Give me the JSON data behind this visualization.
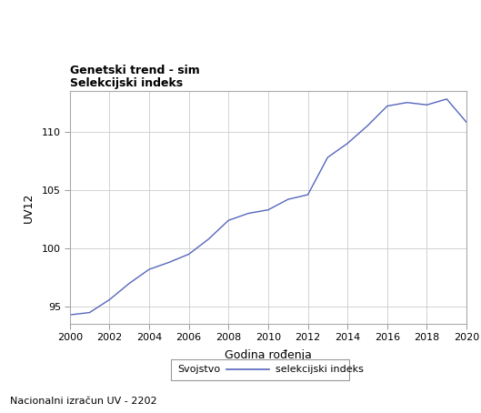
{
  "title_line1": "Genetski trend - sim",
  "title_line2": "Selekcijski indeks",
  "xlabel": "Godina rođenja",
  "ylabel": "UV12",
  "footer": "Nacionalni izračun UV - 2202",
  "legend_label1": "Svojstvo",
  "legend_label2": "selekcijski indeks",
  "line_color": "#5566bb",
  "background_color": "#ffffff",
  "plot_bg_color": "#ffffff",
  "grid_color": "#cccccc",
  "border_color": "#aaaaaa",
  "xlim": [
    2000,
    2020
  ],
  "ylim": [
    93.5,
    113.5
  ],
  "xticks": [
    2000,
    2002,
    2004,
    2006,
    2008,
    2010,
    2012,
    2014,
    2016,
    2018,
    2020
  ],
  "yticks": [
    95,
    100,
    105,
    110
  ],
  "x": [
    2000,
    2001,
    2002,
    2003,
    2004,
    2005,
    2006,
    2007,
    2008,
    2009,
    2010,
    2011,
    2012,
    2013,
    2014,
    2015,
    2016,
    2017,
    2018,
    2019,
    2020
  ],
  "y": [
    94.3,
    94.5,
    95.6,
    97.0,
    98.2,
    98.8,
    99.5,
    100.8,
    102.4,
    103.0,
    103.3,
    104.2,
    104.6,
    107.8,
    109.0,
    110.5,
    112.2,
    112.5,
    112.3,
    112.8,
    110.8
  ],
  "title_fontsize": 9,
  "axis_fontsize": 8,
  "label_fontsize": 9
}
